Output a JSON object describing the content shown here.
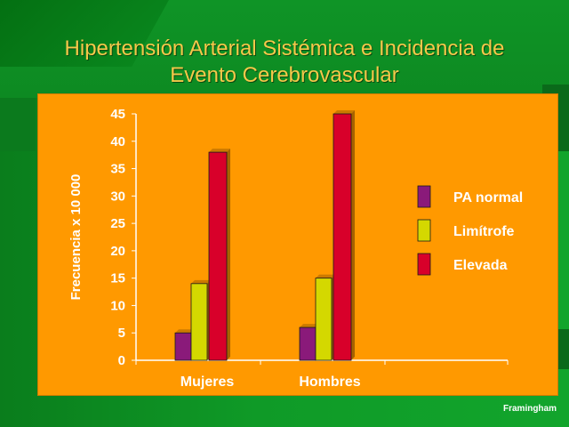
{
  "slide": {
    "title_line1": "Hipertensión Arterial Sistémica e Incidencia de",
    "title_line2": "Evento Cerebrovascular",
    "footer": "Framingham"
  },
  "colors": {
    "panel": "#ff9900",
    "title": "#f5c84a",
    "background": "#0f9a27"
  },
  "chart_data": {
    "type": "bar",
    "title": "",
    "xlabel": "",
    "ylabel": "Frecuencia x 10 000",
    "ylim": [
      0,
      45
    ],
    "yticks": [
      0,
      5,
      10,
      15,
      20,
      25,
      30,
      35,
      40,
      45
    ],
    "categories": [
      "Mujeres",
      "Hombres"
    ],
    "series": [
      {
        "name": "PA normal",
        "values": [
          5,
          6
        ],
        "color": "#8a1a7a"
      },
      {
        "name": "Limítrofe",
        "values": [
          14,
          15
        ],
        "color": "#d4d800"
      },
      {
        "name": "Elevada",
        "values": [
          38,
          45
        ],
        "color": "#d8002a"
      }
    ],
    "legend_position": "right",
    "grid": false
  }
}
